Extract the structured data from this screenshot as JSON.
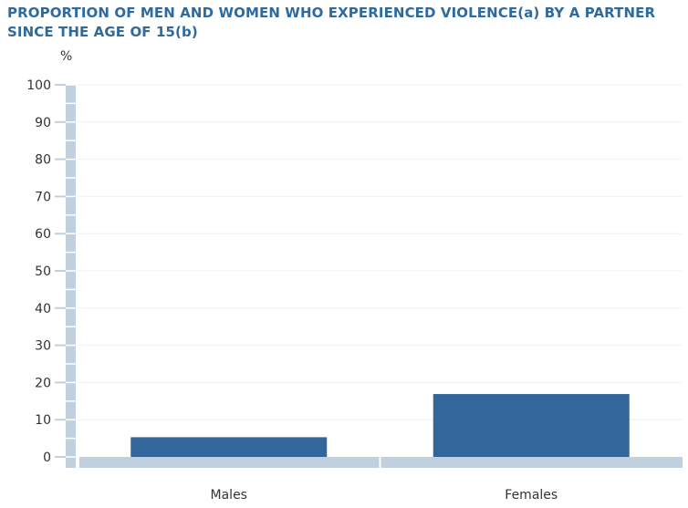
{
  "chart_data": {
    "type": "bar",
    "title": "PROPORTION OF MEN AND WOMEN WHO EXPERIENCED VIOLENCE(a) BY A PARTNER SINCE THE AGE OF 15(b)",
    "ylabel": "%",
    "categories": [
      "Males",
      "Females"
    ],
    "values": [
      5.3,
      16.9
    ],
    "ylim": [
      0,
      100
    ],
    "yticks": [
      0,
      10,
      20,
      30,
      40,
      50,
      60,
      70,
      80,
      90,
      100
    ],
    "grid": true,
    "colors": {
      "bar": "#336699",
      "axis": "#c0d0de",
      "grid": "#eef2f5",
      "title": "#2e6a9e"
    }
  }
}
